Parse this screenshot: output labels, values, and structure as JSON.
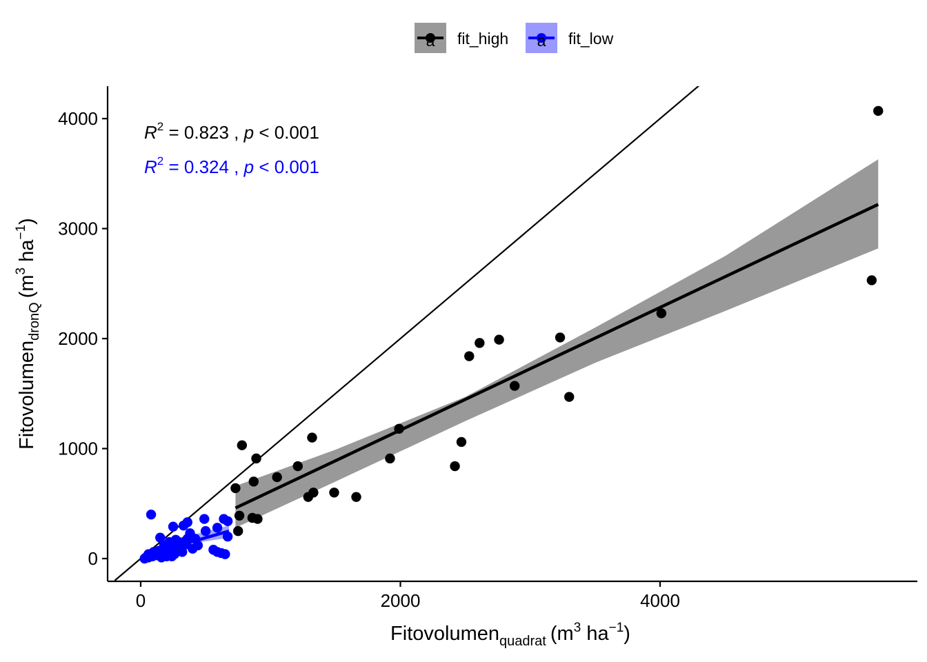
{
  "chart_data": {
    "type": "scatter",
    "xlabel": {
      "main": "Fitovolumen",
      "sub": "quadrat",
      "unit_open": "(m",
      "unit_exp": "3",
      "unit_mid": " ha",
      "unit_exp2": "−1",
      "unit_close": ")"
    },
    "ylabel": {
      "main": "Fitovolumen",
      "sub": "dronQ",
      "unit_open": "(m",
      "unit_exp": "3",
      "unit_mid": " ha",
      "unit_exp2": "−1",
      "unit_close": ")"
    },
    "xlim": [
      -250,
      5650
    ],
    "ylim": [
      -220,
      4280
    ],
    "x_ticks": [
      0,
      2000,
      4000
    ],
    "y_ticks": [
      0,
      1000,
      2000,
      3000,
      4000
    ],
    "x_tick_labels": [
      "0",
      "2000",
      "4000"
    ],
    "y_tick_labels": [
      "0",
      "1000",
      "2000",
      "3000",
      "4000"
    ],
    "grid": false,
    "legend_position": "top",
    "legend": [
      {
        "label": "fit_high",
        "color": "#000000",
        "fill": "#999999",
        "glyph": "a"
      },
      {
        "label": "fit_low",
        "color": "#0000ff",
        "fill": "#9999ff",
        "glyph": "a"
      }
    ],
    "identity_line": {
      "from": [
        -200,
        -200
      ],
      "to": [
        4300,
        4300
      ]
    },
    "annotations": [
      {
        "r2_symbol": "R",
        "r2_exp": "2",
        "r2_text": " = 0.823 , ",
        "p_symbol": "p",
        "p_text": " < 0.001",
        "color": "#000000"
      },
      {
        "r2_symbol": "R",
        "r2_exp": "2",
        "r2_text": " = 0.324 , ",
        "p_symbol": "p",
        "p_text": " < 0.001",
        "color": "#0000ff"
      }
    ],
    "series": [
      {
        "name": "fit_high",
        "color": "#000000",
        "band_color": "#999999",
        "fit": {
          "x_start": 730,
          "x_end": 5680,
          "band": [
            {
              "x": 730,
              "lo": 280,
              "hi": 660
            },
            {
              "x": 1500,
              "lo": 700,
              "hi": 990
            },
            {
              "x": 2500,
              "lo": 1250,
              "hi": 1470
            },
            {
              "x": 3500,
              "lo": 1780,
              "hi": 2100
            },
            {
              "x": 4500,
              "lo": 2250,
              "hi": 2750
            },
            {
              "x": 5680,
              "lo": 2820,
              "hi": 3630
            }
          ],
          "line": [
            [
              730,
              460
            ],
            [
              5680,
              3220
            ]
          ]
        },
        "points": [
          [
            5680,
            4070
          ],
          [
            5630,
            2530
          ],
          [
            4010,
            2230
          ],
          [
            3230,
            2010
          ],
          [
            2760,
            1990
          ],
          [
            2610,
            1960
          ],
          [
            2530,
            1840
          ],
          [
            2880,
            1570
          ],
          [
            3300,
            1470
          ],
          [
            1990,
            1180
          ],
          [
            1320,
            1100
          ],
          [
            2470,
            1060
          ],
          [
            1920,
            910
          ],
          [
            2420,
            840
          ],
          [
            1210,
            840
          ],
          [
            780,
            1030
          ],
          [
            890,
            910
          ],
          [
            1050,
            740
          ],
          [
            870,
            700
          ],
          [
            730,
            640
          ],
          [
            1330,
            600
          ],
          [
            1490,
            600
          ],
          [
            1660,
            560
          ],
          [
            1290,
            560
          ],
          [
            760,
            390
          ],
          [
            860,
            370
          ],
          [
            900,
            360
          ],
          [
            750,
            250
          ]
        ]
      },
      {
        "name": "fit_low",
        "color": "#0000ff",
        "band_color": "#9999ff",
        "fit": {
          "x_start": 30,
          "x_end": 680,
          "band": [
            {
              "x": 30,
              "lo": -10,
              "hi": 70
            },
            {
              "x": 350,
              "lo": 130,
              "hi": 200
            },
            {
              "x": 680,
              "lo": 190,
              "hi": 300
            }
          ],
          "line": [
            [
              30,
              30
            ],
            [
              680,
              250
            ]
          ]
        },
        "points": [
          [
            80,
            400
          ],
          [
            330,
            300
          ],
          [
            360,
            330
          ],
          [
            250,
            290
          ],
          [
            490,
            360
          ],
          [
            640,
            360
          ],
          [
            670,
            340
          ],
          [
            590,
            280
          ],
          [
            500,
            250
          ],
          [
            380,
            230
          ],
          [
            420,
            180
          ],
          [
            150,
            190
          ],
          [
            280,
            160
          ],
          [
            330,
            150
          ],
          [
            440,
            120
          ],
          [
            560,
            80
          ],
          [
            620,
            50
          ],
          [
            650,
            40
          ],
          [
            590,
            60
          ],
          [
            400,
            90
          ],
          [
            250,
            80
          ],
          [
            260,
            40
          ],
          [
            200,
            20
          ],
          [
            170,
            50
          ],
          [
            120,
            30
          ],
          [
            90,
            20
          ],
          [
            60,
            10
          ],
          [
            40,
            10
          ],
          [
            30,
            0
          ],
          [
            100,
            60
          ],
          [
            140,
            70
          ],
          [
            210,
            110
          ],
          [
            230,
            90
          ],
          [
            300,
            100
          ],
          [
            350,
            130
          ],
          [
            180,
            120
          ],
          [
            110,
            50
          ],
          [
            70,
            30
          ],
          [
            270,
            170
          ],
          [
            220,
            150
          ],
          [
            320,
            60
          ],
          [
            240,
            20
          ],
          [
            160,
            10
          ],
          [
            60,
            40
          ],
          [
            190,
            80
          ],
          [
            300,
            130
          ],
          [
            360,
            180
          ],
          [
            670,
            200
          ]
        ]
      }
    ]
  }
}
